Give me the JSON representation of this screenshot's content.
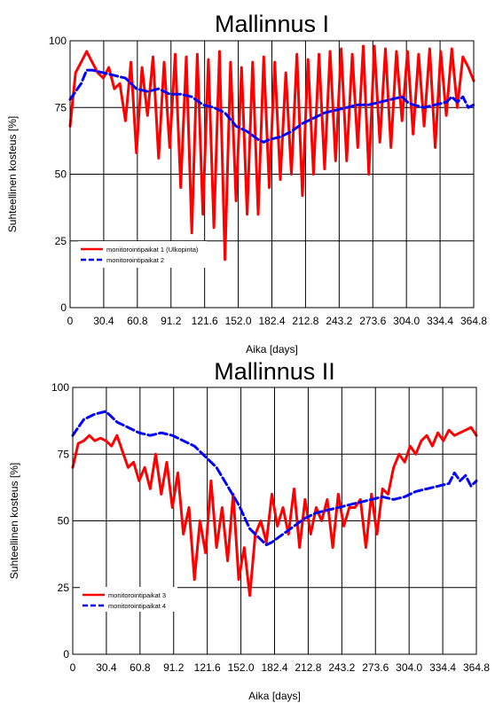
{
  "chart_data": [
    {
      "type": "line",
      "title": "Mallinnus I",
      "xlabel": "Aika [days]",
      "ylabel": "Suhteellinen kosteus [%]",
      "xlim": [
        0,
        364.8
      ],
      "ylim": [
        0,
        100
      ],
      "xticks": [
        "0",
        "30.4",
        "60.8",
        "91.2",
        "121.6",
        "152.0",
        "182.4",
        "212.8",
        "243.2",
        "273.6",
        "304.0",
        "334.4",
        "364.8"
      ],
      "yticks": [
        "0",
        "25",
        "50",
        "75",
        "100"
      ],
      "grid": true,
      "legend_position": "bottom-left",
      "series": [
        {
          "name": "monitorointipaikat 1 (Ulkopinta)",
          "color": "#ff0000",
          "style": "solid",
          "x": [
            0,
            5,
            10,
            15,
            20,
            25,
            30,
            35,
            40,
            45,
            50,
            55,
            60,
            65,
            70,
            75,
            80,
            85,
            90,
            95,
            100,
            105,
            110,
            115,
            120,
            125,
            130,
            135,
            140,
            145,
            150,
            155,
            160,
            165,
            170,
            175,
            180,
            185,
            190,
            195,
            200,
            205,
            210,
            215,
            220,
            225,
            230,
            235,
            240,
            245,
            250,
            255,
            260,
            265,
            270,
            275,
            280,
            285,
            290,
            295,
            300,
            305,
            310,
            315,
            320,
            325,
            330,
            335,
            340,
            345,
            350,
            355,
            360,
            364.8
          ],
          "values": [
            68,
            88,
            92,
            96,
            92,
            88,
            86,
            90,
            82,
            84,
            70,
            92,
            58,
            90,
            72,
            94,
            56,
            92,
            60,
            95,
            45,
            94,
            28,
            95,
            35,
            93,
            30,
            96,
            18,
            92,
            40,
            90,
            35,
            92,
            35,
            94,
            45,
            92,
            48,
            88,
            50,
            95,
            42,
            93,
            50,
            95,
            52,
            96,
            55,
            97,
            55,
            95,
            60,
            98,
            50,
            98,
            62,
            97,
            60,
            96,
            70,
            96,
            65,
            95,
            68,
            97,
            60,
            96,
            72,
            97,
            75,
            94,
            90,
            85
          ]
        },
        {
          "name": "monitorointipaikat 2",
          "color": "#0000ff",
          "style": "dashed",
          "x": [
            0,
            10,
            15,
            20,
            30,
            40,
            50,
            60,
            70,
            80,
            90,
            100,
            110,
            120,
            130,
            140,
            150,
            160,
            170,
            175,
            180,
            190,
            200,
            210,
            220,
            230,
            240,
            250,
            260,
            270,
            280,
            290,
            300,
            305,
            310,
            320,
            330,
            340,
            345,
            350,
            355,
            360,
            364.8
          ],
          "values": [
            78,
            84,
            89,
            89,
            88,
            87,
            86,
            82,
            81,
            82,
            80,
            80,
            79,
            76,
            75,
            73,
            68,
            66,
            63,
            62,
            63,
            64,
            66,
            69,
            71,
            73,
            74,
            75,
            76,
            76,
            77,
            78,
            79,
            77,
            76,
            75,
            76,
            77,
            79,
            77,
            79,
            75,
            76
          ]
        }
      ]
    },
    {
      "type": "line",
      "title": "Mallinnus II",
      "xlabel": "Aika [days]",
      "ylabel": "Suhteellinen kosteus [%]",
      "xlim": [
        0,
        364.8
      ],
      "ylim": [
        0,
        100
      ],
      "xticks": [
        "0",
        "30.4",
        "60.8",
        "91.2",
        "121.6",
        "152.0",
        "182.4",
        "212.8",
        "243.2",
        "273.6",
        "304.0",
        "334.4",
        "364.8"
      ],
      "yticks": [
        "0",
        "25",
        "50",
        "75",
        "100"
      ],
      "grid": true,
      "legend_position": "bottom-left",
      "series": [
        {
          "name": "monitorointipaikat 3",
          "color": "#ff0000",
          "style": "solid",
          "x": [
            0,
            5,
            10,
            15,
            20,
            25,
            30,
            35,
            40,
            45,
            50,
            55,
            60,
            65,
            70,
            75,
            80,
            85,
            90,
            95,
            100,
            105,
            110,
            115,
            120,
            125,
            130,
            135,
            140,
            145,
            150,
            155,
            160,
            165,
            170,
            175,
            180,
            185,
            190,
            195,
            200,
            205,
            210,
            215,
            220,
            225,
            230,
            235,
            240,
            245,
            250,
            255,
            260,
            265,
            270,
            275,
            280,
            285,
            290,
            295,
            300,
            305,
            310,
            315,
            320,
            325,
            330,
            335,
            340,
            345,
            350,
            355,
            360,
            364.8
          ],
          "values": [
            70,
            79,
            80,
            82,
            80,
            81,
            80,
            78,
            82,
            76,
            70,
            72,
            65,
            70,
            62,
            75,
            60,
            72,
            55,
            68,
            45,
            55,
            28,
            50,
            38,
            65,
            40,
            55,
            35,
            60,
            28,
            40,
            22,
            45,
            50,
            42,
            60,
            48,
            55,
            45,
            62,
            40,
            58,
            45,
            55,
            50,
            58,
            40,
            60,
            48,
            55,
            55,
            58,
            40,
            60,
            45,
            62,
            60,
            70,
            75,
            72,
            78,
            75,
            80,
            82,
            78,
            83,
            80,
            84,
            82,
            83,
            84,
            85,
            82
          ]
        },
        {
          "name": "monitorointipaikat 4",
          "color": "#0000ff",
          "style": "dashed",
          "x": [
            0,
            5,
            10,
            20,
            30,
            35,
            40,
            50,
            60,
            70,
            80,
            90,
            100,
            110,
            120,
            130,
            140,
            150,
            160,
            170,
            175,
            180,
            190,
            200,
            210,
            220,
            230,
            240,
            250,
            260,
            270,
            280,
            290,
            300,
            310,
            320,
            330,
            340,
            345,
            350,
            355,
            360,
            364.8
          ],
          "values": [
            82,
            85,
            88,
            90,
            91,
            89,
            87,
            85,
            83,
            82,
            83,
            82,
            80,
            78,
            74,
            70,
            63,
            56,
            47,
            43,
            41,
            42,
            45,
            48,
            51,
            53,
            54,
            55,
            56,
            57,
            58,
            59,
            58,
            59,
            61,
            62,
            63,
            64,
            68,
            65,
            67,
            63,
            65
          ]
        }
      ]
    }
  ]
}
